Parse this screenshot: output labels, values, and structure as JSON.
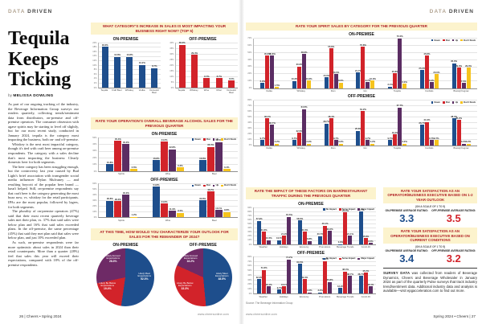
{
  "page_left": {
    "header": {
      "light": "DATA",
      "bold": "DRIVEN"
    },
    "title_lines": [
      "Tequila",
      "Keeps",
      "Ticking"
    ],
    "byline_prefix": "by ",
    "byline_name": "MELISSA DOWLING",
    "paragraphs": [
      "As part of our ongoing tracking of the industry, the Beverage Information Group surveys our readers quarterly, collecting trends/sentiment data from distributors, on-premise and off-premise operators. The consumer obsession with agave spirits may be starting to level off slightly, but for our most recent study, conducted in January 2024, tequila is the category most impacting the business, both on- and off-premise.",
      "Whiskey is the next most impactful category, though it's tied with craft beer among on-premise respondents. The category with a sales decline that's most impacting the business: Clearly domestic beer for both segments.",
      "The beer category has been struggling enough, but the controversy last year caused by Bud Light's brief association with transgender social media influencer Dylan Mulvaney — and resulting boycott of the popular beer brand — hasn't helped. Still, on-premise respondents say that craft beer is the category generating the most buzz now, vs. whiskey for the retail participants. IPAs are the most popular, followed by lagers, for both segments.",
      "The plurality of on-premise operators (47%) said that their most recent quarterly beverage sales met their plan, vs. 37% that said sales were below plan and 16% that said sales exceeded plans. In the off-premise, the same percentage (45%) that said they met plan said that sales were below plan, and just 10% exceeded plan.",
      "As such, on-premise respondents were far more optimistic about sales in 2024 than their retail counterparts. More than a quarter (28%) feel that sales this year will exceed their expectations, compared with 18% of the off-premise respondents."
    ],
    "footer_left": "26 | Cheers • Spring 2024",
    "footer_right": "www.cheersonline.com"
  },
  "page_right": {
    "header": {
      "light": "DATA",
      "bold": "DRIVEN"
    },
    "source_note": "Source: The Beverage Information Group",
    "boxes": [
      {
        "title": "RATE YOUR SATISFACTION AS AN OPERATOR/BUSINESS EXECUTIVE BASED ON 1-2 YEAR OUTLOOK",
        "scale_note": "(ON A SCALE OF 1 TO 5)",
        "on_label": "ON-PREMISE AVERAGE RATING:",
        "on_value": "3.3",
        "off_label": "OFF-PREMISE AVERAGE RATING:",
        "off_value": "3.5"
      },
      {
        "title": "RATE YOUR SATISFACTION AS AN OPERATOR/BUSINESS EXECUTIVE BASED ON CURRENT CONDITIONS",
        "scale_note": "(ON A SCALE OF 1 TO 5)",
        "on_label": "ON-PREMISE AVERAGE RATING:",
        "on_value": "3.4",
        "off_label": "OFF-PREMISE AVERAGE RATING:",
        "off_value": "3.2"
      }
    ],
    "survey_lead": "SURVEY DATA",
    "survey_rest": " was collected from readers of Beverage Dynamics, Cheers and Beverage Wholesaler in January 2024 as part of the quarterly Pulse surveys that track industry trend/sentiment data. Additional industry data and analysis is available—visit epgacceleration.com to find out more.",
    "footer_left": "www.cheersonline.com",
    "footer_right": "Spring 2024 • Cheers | 27"
  },
  "colors": {
    "navy": "#1e4e8c",
    "red": "#d2232a",
    "purple": "#5b2d63",
    "yellow": "#f6c31c",
    "band_bg": "#fcf3cd",
    "band_text": "#b01f24"
  },
  "chart_data": [
    {
      "id": "category-increase",
      "type": "bar",
      "title": "WHAT CATEGORY'S INCREASE IN SALES IS MOST IMPACTING YOUR BUSINESS RIGHT NOW? (TOP 5)",
      "panels": [
        {
          "name": "ON-PREMISE",
          "color": "#1e4e8c",
          "ymax": 20,
          "ystep": 2,
          "categories": [
            "Tequila",
            "Craft Beer",
            "Whiskey",
            "Vodka",
            "Domestic Beer"
          ],
          "values": [
            18.2,
            13.8,
            13.8,
            10.2,
            8.7
          ]
        },
        {
          "name": "OFF-PREMISE",
          "color": "#d2232a",
          "ymax": 40,
          "ystep": 5,
          "categories": [
            "Tequila",
            "Whiskey",
            "Wine",
            "Other",
            "Domestic Beer"
          ],
          "values": [
            38.2,
            29.4,
            8.7,
            8.7,
            6.5
          ]
        }
      ]
    },
    {
      "id": "overall-beverage-sales",
      "type": "grouped-bar",
      "title": "RATE YOUR OPERATION'S OVERALL BEVERAGE ALCOHOL SALES FOR THE PREVIOUS QUARTER",
      "legend": [
        "Down",
        "Flat",
        "Up",
        "Don't Stock"
      ],
      "series_colors": [
        "#1e4e8c",
        "#d2232a",
        "#5b2d63",
        "#f6c31c"
      ],
      "panels": [
        {
          "name": "ON-PREMISE",
          "ymax": 50,
          "ystep": 10,
          "categories": [
            "Spirits",
            "Wine",
            "Beer"
          ],
          "groups": [
            [
              10.8,
              45.4,
              40.2,
              3.6
            ],
            [
              16.8,
              44.2,
              32.8,
              6.2
            ],
            [
              16.8,
              36.4,
              43.4,
              3.4
            ]
          ]
        },
        {
          "name": "OFF-PREMISE",
          "ymax": 60,
          "ystep": 10,
          "categories": [
            "Spirits",
            "Wine",
            "Beer"
          ],
          "groups": [
            [
              29.8,
              29.0,
              40.2,
              1.2
            ],
            [
              54.8,
              24.6,
              11.9,
              8.5
            ],
            [
              30.8,
              46.2,
              13.1,
              9.8
            ]
          ]
        }
      ]
    },
    {
      "id": "spirit-sales-by-category",
      "type": "grouped-bar",
      "title": "RATE YOUR SPIRIT SALES BY CATEGORY FOR THE PREVIOUS QUARTER",
      "legend": [
        "Down",
        "Flat",
        "Up",
        "Don't Stock"
      ],
      "series_colors": [
        "#1e4e8c",
        "#d2232a",
        "#5b2d63",
        "#f6c31c"
      ],
      "panels": [
        {
          "name": "ON-PREMISE",
          "ymax": 70,
          "ystep": 10,
          "categories": [
            "Vodka",
            "Whiskey",
            "Rum",
            "Gin",
            "Tequila",
            "Cordials",
            "Brandy/Cognac"
          ],
          "groups": [
            [
              6.9,
              45.8,
              45.8,
              1.5
            ],
            [
              10.2,
              30.6,
              48.0,
              10.6
            ],
            [
              15.0,
              55.8,
              20.0,
              8.0
            ],
            [
              21.7,
              57.8,
              8.7,
              10.9
            ],
            [
              2.1,
              20.8,
              70.0,
              6.0
            ],
            [
              25.0,
              45.8,
              8.3,
              20.0
            ],
            [
              35.0,
              29.0,
              7.0,
              29.0
            ]
          ]
        },
        {
          "name": "OFF-PREMISE",
          "ymax": 80,
          "ystep": 10,
          "categories": [
            "Vodka",
            "Whiskey",
            "Rum",
            "Gin",
            "Tequila",
            "Cordials",
            "Brandy/Cognac"
          ],
          "groups": [
            [
              9.7,
              48.4,
              36.7,
              3.2
            ],
            [
              9.7,
              22.5,
              64.5,
              3.2
            ],
            [
              38.7,
              48.4,
              9.7,
              3.2
            ],
            [
              25.8,
              61.2,
              9.7,
              3.2
            ],
            [
              9.7,
              19.4,
              67.7,
              3.2
            ],
            [
              36.7,
              41.9,
              9.7,
              9.7
            ],
            [
              48.4,
              45.2,
              3.2,
              3.2
            ]
          ]
        }
      ]
    },
    {
      "id": "traffic-factors",
      "type": "grouped-bar",
      "title": "RATE THE IMPACT OF THESE FACTORS ON BAR/RESTAURANT TRAFFIC DURING THE PREVIOUS QUARTER",
      "legend": [
        "No Impact",
        "Some Impact",
        "Major Impact"
      ],
      "series_colors": [
        "#1e4e8c",
        "#d2232a",
        "#5b2d63"
      ],
      "panels": [
        {
          "name": "ON-PREMISE",
          "ymax": 90,
          "ystep": 10,
          "categories": [
            "Weather",
            "Holidays",
            "Economy",
            "Promotions",
            "Beverage Trends",
            "Covid-19"
          ],
          "groups": [
            [
              57.9,
              31.6,
              10.5
            ],
            [
              10.5,
              21.9,
              67.5
            ],
            [
              58.6,
              31.6,
              8.8
            ],
            [
              20.7,
              46.1,
              33.2
            ],
            [
              0.9,
              78.0,
              21.1
            ],
            [
              80.7,
              15.8,
              3.5
            ]
          ]
        },
        {
          "name": "OFF-PREMISE",
          "ymax": 80,
          "ystep": 10,
          "categories": [
            "Weather",
            "Holidays",
            "Economy",
            "Promotions",
            "Beverage Trends",
            "Covid-19"
          ],
          "groups": [
            [
              32.3,
              51.6,
              16.1
            ],
            [
              9.7,
              16.1,
              74.2
            ],
            [
              64.5,
              32.3,
              3.2
            ],
            [
              3.2,
              71.0,
              25.8
            ],
            [
              12.9,
              48.4,
              38.7
            ],
            [
              38.7,
              45.2,
              16.1
            ]
          ]
        }
      ]
    },
    {
      "id": "sales-outlook",
      "type": "pie",
      "title": "AT THIS TIME, HOW WOULD YOU CHARACTERIZE YOUR OUTLOOK FOR SALES FOR THE REMAINDER OF 2024?",
      "panels": [
        {
          "name": "ON-PREMISE",
          "slices": [
            {
              "label": "Likely Meet Expectations",
              "value": 52.3,
              "color": "#1e4e8c"
            },
            {
              "label": "Likely Be Below Expectations",
              "value": 19.4,
              "color": "#d2232a"
            },
            {
              "label": "Likely Exceed Expectations",
              "value": 28.3,
              "color": "#6e2a66"
            }
          ]
        },
        {
          "name": "OFF-PREMISE",
          "slices": [
            {
              "label": "Likely Meet Expectations",
              "value": 48.5,
              "color": "#1e4e8c"
            },
            {
              "label": "Likely Be Below Expectations",
              "value": 33.3,
              "color": "#d2232a"
            },
            {
              "label": "Likely Exceed Expectations",
              "value": 18.2,
              "color": "#6e2a66"
            }
          ]
        }
      ]
    }
  ]
}
